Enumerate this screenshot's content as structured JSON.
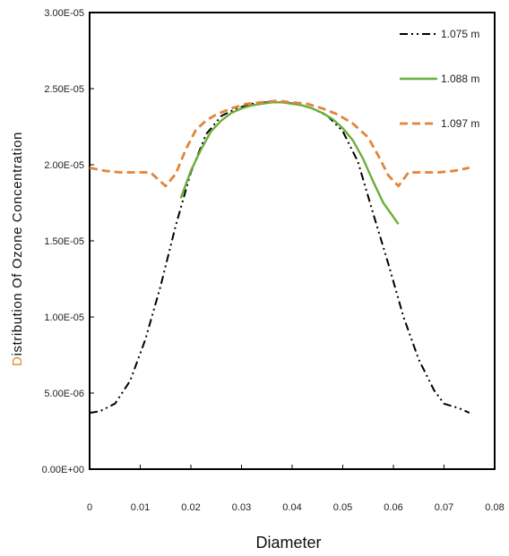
{
  "chart_data": {
    "type": "line",
    "xlabel": "Diameter",
    "ylabel": "Distribution Of Ozone Concentration",
    "xlim": [
      0,
      0.08
    ],
    "ylim": [
      0,
      3e-05
    ],
    "x_ticks": [
      0,
      0.01,
      0.02,
      0.03,
      0.04,
      0.05,
      0.06,
      0.07,
      0.08
    ],
    "x_tick_labels": [
      "0",
      "0.01",
      "0.02",
      "0.03",
      "0.04",
      "0.05",
      "0.06",
      "0.07",
      "0.08"
    ],
    "y_ticks": [
      0,
      5e-06,
      1e-05,
      1.5e-05,
      2e-05,
      2.5e-05,
      3e-05
    ],
    "y_tick_labels": [
      "0.00E+00",
      "5.00E-06",
      "1.00E-05",
      "1.50E-05",
      "2.00E-05",
      "2.50E-05",
      "3.00E-05"
    ],
    "grid": false,
    "legend_position": "top-right",
    "colors": {
      "axis": "#000000",
      "axis_title": "#111111",
      "y_title_first_letter": "#d88a2a"
    },
    "series": [
      {
        "name": "1.075 m",
        "color": "#000000",
        "dash": "dash-dot-dot",
        "x": [
          0.0,
          0.002,
          0.005,
          0.008,
          0.011,
          0.014,
          0.017,
          0.02,
          0.023,
          0.026,
          0.029,
          0.032,
          0.035,
          0.038,
          0.041,
          0.044,
          0.047,
          0.05,
          0.053,
          0.056,
          0.059,
          0.062,
          0.065,
          0.068,
          0.07,
          0.073,
          0.075
        ],
        "y": [
          3.7e-06,
          3.8e-06,
          4.3e-06,
          5.8e-06,
          8.5e-06,
          1.2e-05,
          1.6e-05,
          1.95e-05,
          2.2e-05,
          2.32e-05,
          2.37e-05,
          2.4e-05,
          2.41e-05,
          2.41e-05,
          2.4e-05,
          2.37e-05,
          2.32e-05,
          2.22e-05,
          2.02e-05,
          1.68e-05,
          1.35e-05,
          1e-05,
          7.2e-06,
          5.2e-06,
          4.3e-06,
          4e-06,
          3.7e-06
        ]
      },
      {
        "name": "1.088 m",
        "color": "#6aae3a",
        "dash": "solid",
        "x": [
          0.018,
          0.02,
          0.022,
          0.024,
          0.026,
          0.028,
          0.03,
          0.032,
          0.034,
          0.036,
          0.038,
          0.04,
          0.042,
          0.044,
          0.046,
          0.048,
          0.05,
          0.052,
          0.054,
          0.056,
          0.058,
          0.061
        ],
        "y": [
          1.78e-05,
          1.96e-05,
          2.1e-05,
          2.22e-05,
          2.29e-05,
          2.34e-05,
          2.37e-05,
          2.39e-05,
          2.4e-05,
          2.41e-05,
          2.41e-05,
          2.4e-05,
          2.39e-05,
          2.37e-05,
          2.34e-05,
          2.3e-05,
          2.24e-05,
          2.16e-05,
          2.04e-05,
          1.89e-05,
          1.75e-05,
          1.61e-05
        ]
      },
      {
        "name": "1.097 m",
        "color": "#e2843a",
        "dash": "dashed",
        "x": [
          0.0,
          0.003,
          0.006,
          0.009,
          0.012,
          0.015,
          0.017,
          0.019,
          0.021,
          0.023,
          0.025,
          0.028,
          0.031,
          0.034,
          0.037,
          0.04,
          0.043,
          0.046,
          0.049,
          0.052,
          0.055,
          0.057,
          0.059,
          0.061,
          0.063,
          0.066,
          0.069,
          0.072,
          0.075
        ],
        "y": [
          1.98e-05,
          1.96e-05,
          1.95e-05,
          1.95e-05,
          1.95e-05,
          1.86e-05,
          1.94e-05,
          2.1e-05,
          2.23e-05,
          2.29e-05,
          2.33e-05,
          2.37e-05,
          2.4e-05,
          2.41e-05,
          2.42e-05,
          2.41e-05,
          2.4e-05,
          2.37e-05,
          2.33e-05,
          2.27e-05,
          2.18e-05,
          2.06e-05,
          1.93e-05,
          1.86e-05,
          1.95e-05,
          1.95e-05,
          1.95e-05,
          1.96e-05,
          1.98e-05
        ]
      }
    ]
  }
}
